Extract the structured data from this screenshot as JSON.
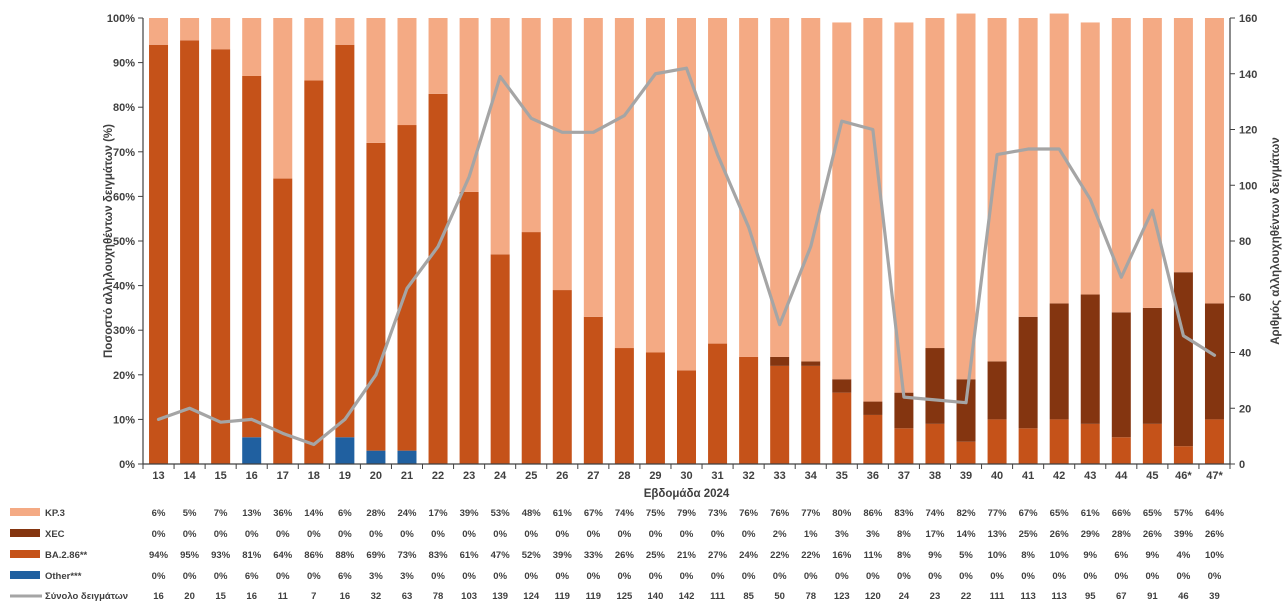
{
  "chart_data": {
    "type": "bar",
    "stacked": true,
    "categories": [
      "13",
      "14",
      "15",
      "16",
      "17",
      "18",
      "19",
      "20",
      "21",
      "22",
      "23",
      "24",
      "25",
      "26",
      "27",
      "28",
      "29",
      "30",
      "31",
      "32",
      "33",
      "34",
      "35",
      "36",
      "37",
      "38",
      "39",
      "40",
      "41",
      "42",
      "43",
      "44",
      "45",
      "46*",
      "47*"
    ],
    "xlabel": "Εβδομάδα 2024",
    "ylabel": "Ποσοστό αλληλουχηθέντων δειγμάτων (%)",
    "y2label": "Αριθμός αλληλουχηθέντων δειγμάτων",
    "ylim": [
      0,
      100
    ],
    "y2lim": [
      0,
      160
    ],
    "yticks": [
      "0%",
      "10%",
      "20%",
      "30%",
      "40%",
      "50%",
      "60%",
      "70%",
      "80%",
      "90%",
      "100%"
    ],
    "y2ticks": [
      "0",
      "20",
      "40",
      "60",
      "80",
      "100",
      "120",
      "140",
      "160"
    ],
    "series": [
      {
        "name": "Other***",
        "color": "#2060a0",
        "values": [
          0,
          0,
          0,
          6,
          0,
          0,
          6,
          3,
          3,
          0,
          0,
          0,
          0,
          0,
          0,
          0,
          0,
          0,
          0,
          0,
          0,
          0,
          0,
          0,
          0,
          0,
          0,
          0,
          0,
          0,
          0,
          0,
          0,
          0,
          0
        ],
        "labels": [
          "0%",
          "0%",
          "0%",
          "6%",
          "0%",
          "0%",
          "6%",
          "3%",
          "3%",
          "0%",
          "0%",
          "0%",
          "0%",
          "0%",
          "0%",
          "0%",
          "0%",
          "0%",
          "0%",
          "0%",
          "0%",
          "0%",
          "0%",
          "0%",
          "0%",
          "0%",
          "0%",
          "0%",
          "0%",
          "0%",
          "0%",
          "0%",
          "0%",
          "0%",
          "0%"
        ]
      },
      {
        "name": "BA.2.86**",
        "color": "#c55219",
        "values": [
          94,
          95,
          93,
          81,
          64,
          86,
          88,
          69,
          73,
          83,
          61,
          47,
          52,
          39,
          33,
          26,
          25,
          21,
          27,
          24,
          22,
          22,
          16,
          11,
          8,
          9,
          5,
          10,
          8,
          10,
          9,
          6,
          9,
          4,
          10
        ],
        "labels": [
          "94%",
          "95%",
          "93%",
          "81%",
          "64%",
          "86%",
          "88%",
          "69%",
          "73%",
          "83%",
          "61%",
          "47%",
          "52%",
          "39%",
          "33%",
          "26%",
          "25%",
          "21%",
          "27%",
          "24%",
          "22%",
          "22%",
          "16%",
          "11%",
          "8%",
          "9%",
          "5%",
          "10%",
          "8%",
          "10%",
          "9%",
          "6%",
          "9%",
          "4%",
          "10%"
        ]
      },
      {
        "name": "XEC",
        "color": "#843510",
        "values": [
          0,
          0,
          0,
          0,
          0,
          0,
          0,
          0,
          0,
          0,
          0,
          0,
          0,
          0,
          0,
          0,
          0,
          0,
          0,
          0,
          2,
          1,
          3,
          3,
          8,
          17,
          14,
          13,
          25,
          26,
          29,
          28,
          26,
          39,
          26
        ],
        "labels": [
          "0%",
          "0%",
          "0%",
          "0%",
          "0%",
          "0%",
          "0%",
          "0%",
          "0%",
          "0%",
          "0%",
          "0%",
          "0%",
          "0%",
          "0%",
          "0%",
          "0%",
          "0%",
          "0%",
          "0%",
          "2%",
          "1%",
          "3%",
          "3%",
          "8%",
          "17%",
          "14%",
          "13%",
          "25%",
          "26%",
          "29%",
          "28%",
          "26%",
          "39%",
          "26%"
        ]
      },
      {
        "name": "KP.3",
        "color": "#f4aa84",
        "values": [
          6,
          5,
          7,
          13,
          36,
          14,
          6,
          28,
          24,
          17,
          39,
          53,
          48,
          61,
          67,
          74,
          75,
          79,
          73,
          76,
          76,
          77,
          80,
          86,
          83,
          74,
          82,
          77,
          67,
          65,
          61,
          66,
          65,
          57,
          64
        ],
        "labels": [
          "6%",
          "5%",
          "7%",
          "13%",
          "36%",
          "14%",
          "6%",
          "28%",
          "24%",
          "17%",
          "39%",
          "53%",
          "48%",
          "61%",
          "67%",
          "74%",
          "75%",
          "79%",
          "73%",
          "76%",
          "76%",
          "77%",
          "80%",
          "86%",
          "83%",
          "74%",
          "82%",
          "77%",
          "67%",
          "65%",
          "61%",
          "66%",
          "65%",
          "57%",
          "64%"
        ]
      }
    ],
    "line": {
      "name": "Σύνολο δειγμάτων",
      "color": "#a5a5a5",
      "axis": "y2",
      "values": [
        16,
        20,
        15,
        16,
        11,
        7,
        16,
        32,
        63,
        78,
        103,
        139,
        124,
        119,
        119,
        125,
        140,
        142,
        111,
        85,
        50,
        78,
        123,
        120,
        24,
        23,
        22,
        111,
        113,
        113,
        95,
        67,
        91,
        46,
        39
      ],
      "labels": [
        "16",
        "20",
        "15",
        "16",
        "11",
        "7",
        "16",
        "32",
        "63",
        "78",
        "103",
        "139",
        "124",
        "119",
        "119",
        "125",
        "140",
        "142",
        "111",
        "85",
        "50",
        "78",
        "123",
        "120",
        "24",
        "23",
        "22",
        "111",
        "113",
        "113",
        "95",
        "67",
        "91",
        "46",
        "39"
      ]
    },
    "table_rows": [
      {
        "label": "KP.3",
        "key": "KP.3"
      },
      {
        "label": "XEC",
        "key": "XEC"
      },
      {
        "label": "BA.2.86**",
        "key": "BA.2.86**"
      },
      {
        "label": "Other***",
        "key": "Other***"
      },
      {
        "label": "Σύνολο δειγμάτων",
        "key": "line"
      }
    ],
    "grid": false
  }
}
